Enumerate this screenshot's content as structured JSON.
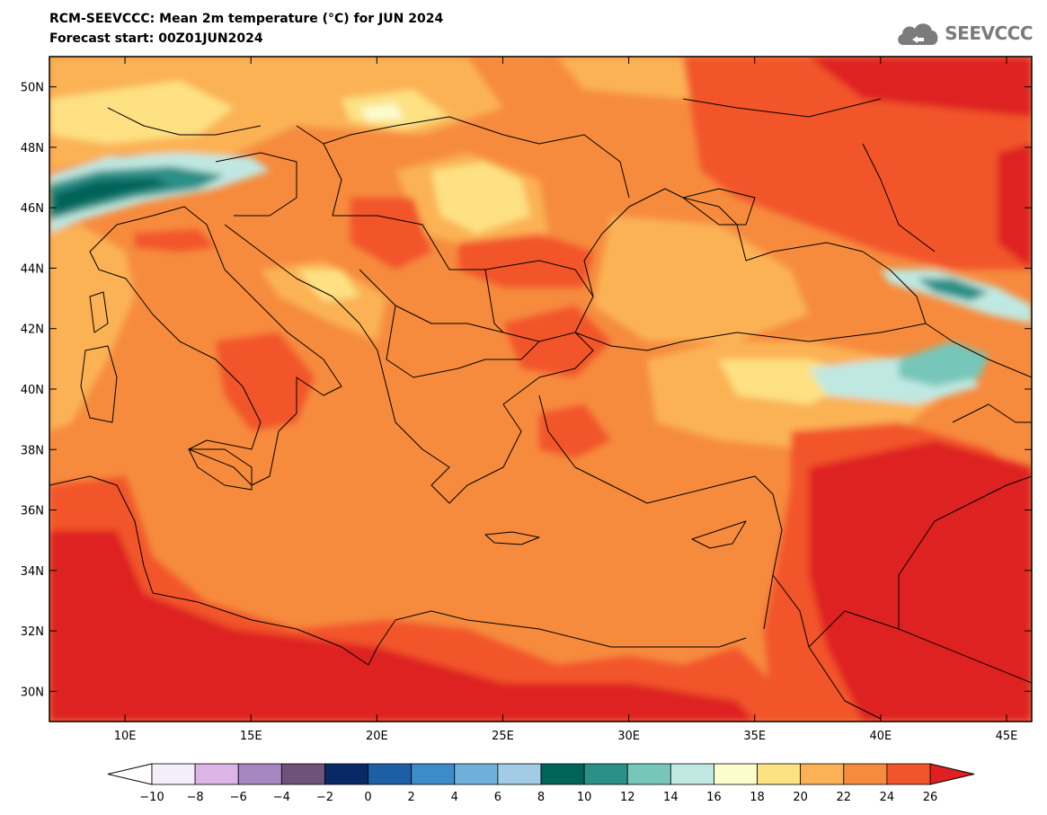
{
  "header": {
    "title": "RCM-SEEVCCC: Mean 2m temperature (°C) for JUN 2024",
    "subtitle": "Forecast start: 00Z01JUN2024",
    "logo_text": "SEEVCCC"
  },
  "map": {
    "lon_range": [
      7,
      46
    ],
    "lat_range": [
      29,
      51
    ],
    "lat_ticks": [
      {
        "value": 50,
        "label": "50N"
      },
      {
        "value": 48,
        "label": "48N"
      },
      {
        "value": 46,
        "label": "46N"
      },
      {
        "value": 44,
        "label": "44N"
      },
      {
        "value": 42,
        "label": "42N"
      },
      {
        "value": 40,
        "label": "40N"
      },
      {
        "value": 38,
        "label": "38N"
      },
      {
        "value": 36,
        "label": "36N"
      },
      {
        "value": 34,
        "label": "34N"
      },
      {
        "value": 32,
        "label": "32N"
      },
      {
        "value": 30,
        "label": "30N"
      }
    ],
    "lon_ticks": [
      {
        "value": 10,
        "label": "10E"
      },
      {
        "value": 15,
        "label": "15E"
      },
      {
        "value": 20,
        "label": "20E"
      },
      {
        "value": 25,
        "label": "25E"
      },
      {
        "value": 30,
        "label": "30E"
      },
      {
        "value": 35,
        "label": "35E"
      },
      {
        "value": 40,
        "label": "40E"
      },
      {
        "value": 45,
        "label": "45E"
      }
    ]
  },
  "colorbar": {
    "labels": [
      "-10",
      "-8",
      "-6",
      "-4",
      "-2",
      "0",
      "2",
      "4",
      "6",
      "8",
      "10",
      "12",
      "14",
      "16",
      "18",
      "20",
      "22",
      "24",
      "26"
    ],
    "under_color": "#ffffff",
    "over_color": "#de2021",
    "colors": [
      "#f4eefa",
      "#dcb4e6",
      "#a685c1",
      "#6e5279",
      "#072a66",
      "#1c5fa5",
      "#3b8cc8",
      "#6fb0db",
      "#a2cbe6",
      "#00645a",
      "#2b9087",
      "#76c7b9",
      "#c0e8e2",
      "#fcfccc",
      "#fde183",
      "#fbb255",
      "#f68b3e",
      "#f2552b"
    ]
  }
}
